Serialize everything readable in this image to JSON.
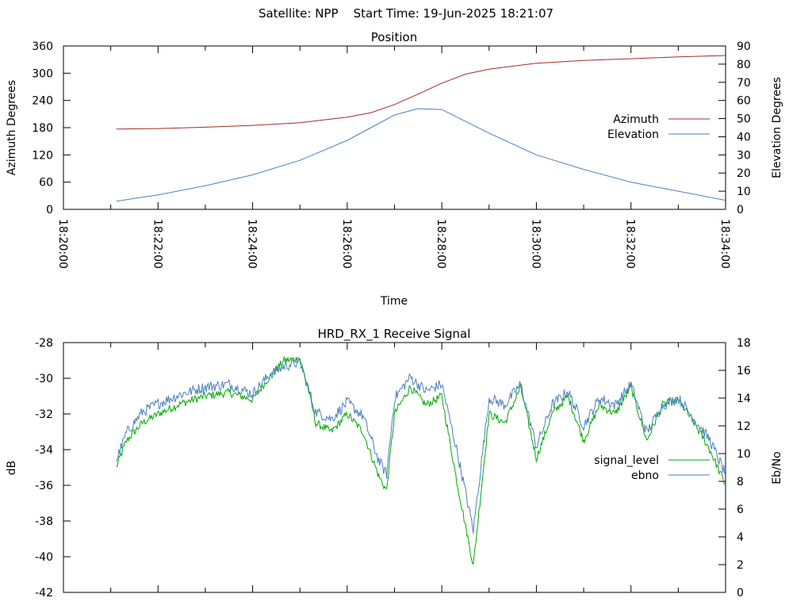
{
  "header": {
    "title": "Satellite: NPP    Start Time: 19-Jun-2025 18:21:07"
  },
  "chart_data": [
    {
      "type": "line",
      "title": "Position",
      "xlabel": "Time",
      "ylabel": "Azimuth Degrees",
      "y2label": "Elevation Degrees",
      "x_ticks": [
        "18:20:00",
        "18:22:00",
        "18:24:00",
        "18:26:00",
        "18:28:00",
        "18:30:00",
        "18:32:00",
        "18:34:00"
      ],
      "xlim": [
        "18:20:00",
        "18:34:00"
      ],
      "ylim": [
        0,
        360
      ],
      "y_ticks": [
        "0",
        "60",
        "120",
        "180",
        "240",
        "300",
        "360"
      ],
      "y2lim": [
        0,
        90
      ],
      "y2_ticks": [
        "0",
        "10",
        "20",
        "30",
        "40",
        "50",
        "60",
        "70",
        "80",
        "90"
      ],
      "legend_position": "right",
      "series": [
        {
          "name": "Azimuth",
          "axis": "y",
          "color": "#a52a2a",
          "x": [
            "18:21:07",
            "18:22:00",
            "18:23:00",
            "18:24:00",
            "18:25:00",
            "18:26:00",
            "18:26:30",
            "18:27:00",
            "18:27:30",
            "18:28:00",
            "18:28:30",
            "18:29:00",
            "18:30:00",
            "18:31:00",
            "18:32:00",
            "18:33:00",
            "18:34:00"
          ],
          "values": [
            177,
            178,
            181,
            185,
            191,
            203,
            213,
            231,
            254,
            278,
            298,
            309,
            322,
            328,
            332,
            336,
            339
          ]
        },
        {
          "name": "Elevation",
          "axis": "y2",
          "color": "#4a7fbf",
          "x": [
            "18:21:07",
            "18:22:00",
            "18:23:00",
            "18:24:00",
            "18:25:00",
            "18:26:00",
            "18:27:00",
            "18:27:30",
            "18:28:00",
            "18:29:00",
            "18:30:00",
            "18:31:00",
            "18:32:00",
            "18:33:00",
            "18:34:00"
          ],
          "values": [
            4.5,
            8,
            13,
            19,
            27,
            38,
            52,
            55.5,
            55,
            42,
            30,
            22,
            15,
            10,
            5
          ]
        }
      ]
    },
    {
      "type": "line",
      "title": "HRD_RX_1 Receive Signal",
      "xlabel": "",
      "ylabel": "dB",
      "y2label": "Eb/No",
      "xlim": [
        "18:20:00",
        "18:34:00"
      ],
      "ylim": [
        -42,
        -28
      ],
      "y_ticks": [
        "-42",
        "-40",
        "-38",
        "-36",
        "-34",
        "-32",
        "-30",
        "-28"
      ],
      "y2lim": [
        0,
        18
      ],
      "y2_ticks": [
        "0",
        "2",
        "4",
        "6",
        "8",
        "10",
        "12",
        "14",
        "16",
        "18"
      ],
      "legend_position": "right",
      "series": [
        {
          "name": "signal_level",
          "axis": "y",
          "color": "#00aa00",
          "x": [
            "18:21:07",
            "18:21:20",
            "18:21:40",
            "18:22:00",
            "18:22:30",
            "18:23:00",
            "18:23:30",
            "18:24:00",
            "18:24:20",
            "18:24:40",
            "18:25:00",
            "18:25:10",
            "18:25:20",
            "18:25:40",
            "18:26:00",
            "18:26:20",
            "18:26:40",
            "18:26:50",
            "18:27:00",
            "18:27:20",
            "18:27:40",
            "18:28:00",
            "18:28:20",
            "18:28:40",
            "18:29:00",
            "18:29:20",
            "18:29:40",
            "18:30:00",
            "18:30:20",
            "18:30:40",
            "18:31:00",
            "18:31:20",
            "18:31:40",
            "18:32:00",
            "18:32:20",
            "18:32:40",
            "18:33:00",
            "18:33:20",
            "18:33:40",
            "18:34:00"
          ],
          "values": [
            -35.0,
            -33.5,
            -32.5,
            -32.0,
            -31.4,
            -31.0,
            -30.8,
            -31.2,
            -30.0,
            -29.0,
            -28.9,
            -30.5,
            -32.5,
            -33.0,
            -32.0,
            -33.0,
            -35.5,
            -36.3,
            -32.0,
            -30.5,
            -31.5,
            -31.0,
            -36.0,
            -40.5,
            -32.0,
            -32.5,
            -30.5,
            -34.5,
            -32.0,
            -31.0,
            -33.5,
            -31.5,
            -32.0,
            -30.5,
            -33.5,
            -31.5,
            -31.2,
            -32.5,
            -34.0,
            -36.0
          ]
        },
        {
          "name": "ebno",
          "axis": "y2",
          "color": "#4a7fbf",
          "x": [
            "18:21:07",
            "18:21:20",
            "18:21:40",
            "18:22:00",
            "18:22:30",
            "18:23:00",
            "18:23:30",
            "18:24:00",
            "18:24:20",
            "18:24:40",
            "18:25:00",
            "18:25:10",
            "18:25:20",
            "18:25:40",
            "18:26:00",
            "18:26:20",
            "18:26:40",
            "18:26:50",
            "18:27:00",
            "18:27:20",
            "18:27:40",
            "18:28:00",
            "18:28:20",
            "18:28:40",
            "18:29:00",
            "18:29:20",
            "18:29:40",
            "18:30:00",
            "18:30:20",
            "18:30:40",
            "18:31:00",
            "18:31:20",
            "18:31:40",
            "18:32:00",
            "18:32:20",
            "18:32:40",
            "18:33:00",
            "18:33:20",
            "18:33:40",
            "18:34:00"
          ],
          "values": [
            9.5,
            11.5,
            13.0,
            13.6,
            14.3,
            14.8,
            15.0,
            14.3,
            15.6,
            16.3,
            16.6,
            14.8,
            13.0,
            12.5,
            13.7,
            12.7,
            9.5,
            8.5,
            14.0,
            15.5,
            14.5,
            15.0,
            10.0,
            4.5,
            14.0,
            13.5,
            15.0,
            10.5,
            13.5,
            14.5,
            12.0,
            14.0,
            13.5,
            15.0,
            11.5,
            13.5,
            14.0,
            12.5,
            11.0,
            8.5
          ]
        }
      ]
    }
  ]
}
